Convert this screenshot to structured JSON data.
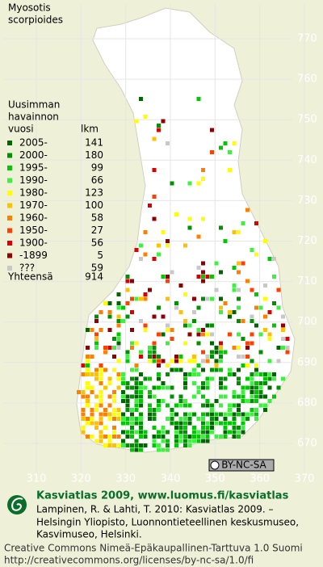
{
  "title": [
    "Myosotis",
    "scorpioides"
  ],
  "legend": {
    "heading": [
      "Uusimman",
      "havainnon"
    ],
    "col_year": "vuosi",
    "col_count": "lkm",
    "entries": [
      {
        "label": "2005-",
        "count": 141,
        "color": "#006400"
      },
      {
        "label": "2000-",
        "count": 180,
        "color": "#009000"
      },
      {
        "label": "1995-",
        "count": 99,
        "color": "#00c800"
      },
      {
        "label": "1990-",
        "count": 66,
        "color": "#40f040"
      },
      {
        "label": "1980-",
        "count": 123,
        "color": "#ffff00"
      },
      {
        "label": "1970-",
        "count": 100,
        "color": "#ffc000"
      },
      {
        "label": "1960-",
        "count": 58,
        "color": "#ff8000"
      },
      {
        "label": "1950-",
        "count": 27,
        "color": "#ff4000"
      },
      {
        "label": "1900-",
        "count": 56,
        "color": "#d80000"
      },
      {
        "label": "-1899",
        "count": 5,
        "color": "#900000"
      },
      {
        "label": "???",
        "count": 59,
        "color": "#c8c8c8"
      }
    ],
    "total_label": "Yhteensä",
    "total": 914
  },
  "grid": {
    "y_labels": [
      770,
      760,
      750,
      740,
      730,
      720,
      710,
      700,
      690,
      680,
      670
    ],
    "x_labels": [
      310,
      320,
      330,
      340,
      350,
      360,
      370
    ]
  },
  "badge": "BY-NC-SA",
  "footer": {
    "brand": "Kasviatlas 2009, www.luomus.fi/kasviatlas",
    "citation": [
      "Lampinen, R. & Lahti, T. 2010: Kasviatlas 2009. –",
      "Helsingin Yliopisto, Luonnontieteellinen keskusmuseo,",
      "Kasvimuseo, Helsinki."
    ],
    "license": [
      "Creative Commons Nimeä-Epäkaupallinen-Tarttuva 1.0 Suomi",
      "http://creativecommons.org/licenses/by-nc-sa/1.0/fi"
    ]
  }
}
